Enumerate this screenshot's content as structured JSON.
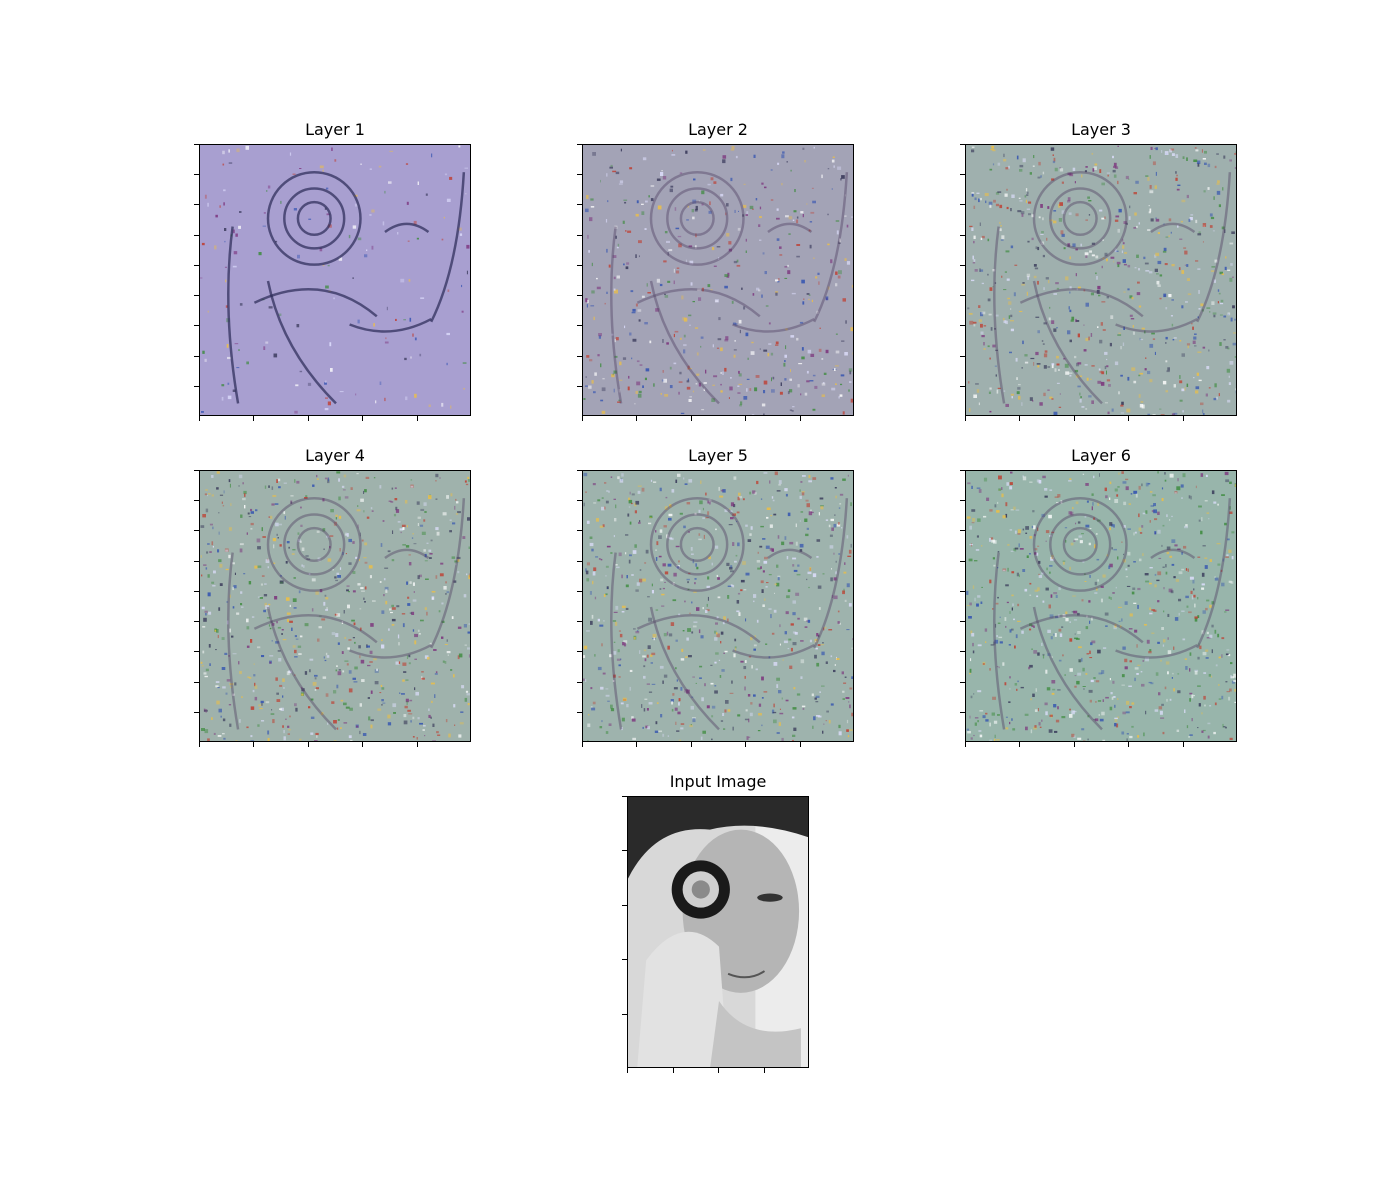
{
  "figure": {
    "panels": [
      {
        "id": "layer-1",
        "title": "Layer 1",
        "tint": "#a89fd0",
        "grain": 0.18
      },
      {
        "id": "layer-2",
        "title": "Layer 2",
        "tint": "#a3a3b6",
        "grain": 0.55
      },
      {
        "id": "layer-3",
        "title": "Layer 3",
        "tint": "#9fb0ae",
        "grain": 0.75
      },
      {
        "id": "layer-4",
        "title": "Layer 4",
        "tint": "#9fb2ac",
        "grain": 0.8
      },
      {
        "id": "layer-5",
        "title": "Layer 5",
        "tint": "#9eb3ad",
        "grain": 0.8
      },
      {
        "id": "layer-6",
        "title": "Layer 6",
        "tint": "#98b5ab",
        "grain": 0.85
      }
    ],
    "input": {
      "id": "input-image",
      "title": "Input Image",
      "tint": "#a0a0a0"
    }
  }
}
